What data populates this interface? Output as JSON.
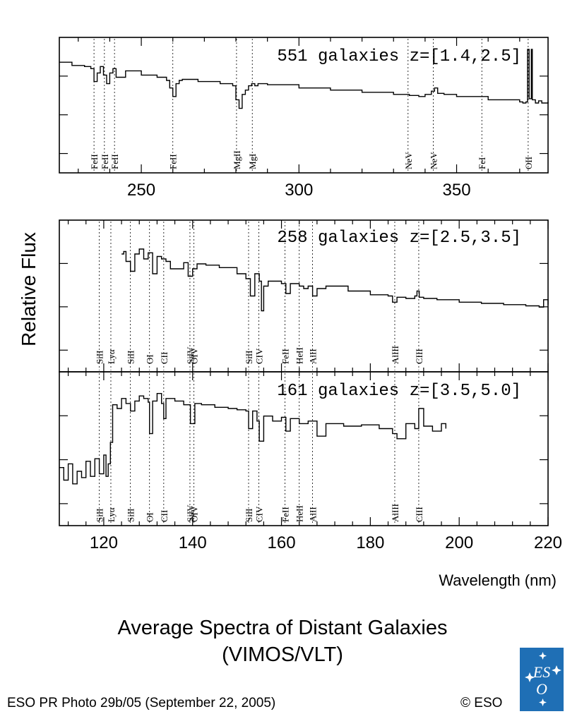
{
  "figure": {
    "ylabel": "Relative Flux",
    "xlabel": "Wavelength (nm)",
    "title_line1": "Average Spectra of Distant Galaxies",
    "title_line2": "(VIMOS/VLT)",
    "credit": "ESO PR Photo 29b/05 (September 22, 2005)",
    "copyright": "© ESO",
    "logo_text": "ESO",
    "colors": {
      "ink": "#000000",
      "logo_bg": "#1f6fb5",
      "logo_fg": "#ffffff"
    }
  },
  "chart_data": [
    {
      "type": "line",
      "panel": "top",
      "series_label": "551 galaxies z=[1.4,2.5]",
      "xlim": [
        224,
        379
      ],
      "xticks": [
        250,
        300,
        350
      ],
      "tick_labels_shown": true,
      "y_relative_range": [
        0,
        1
      ],
      "spectrum": {
        "x": [
          224,
          228,
          232,
          234,
          235,
          236,
          237,
          238,
          239,
          240,
          241,
          242,
          245,
          250,
          255,
          258,
          259,
          260,
          261,
          262,
          263,
          268,
          275,
          279,
          280,
          281,
          282,
          283,
          284,
          285,
          286,
          287,
          290,
          300,
          310,
          320,
          330,
          335,
          338,
          340,
          342,
          343,
          344,
          346,
          350,
          360,
          365,
          370,
          371,
          372,
          372.5,
          373,
          373.7,
          374,
          375,
          376,
          377,
          379
        ],
        "y": [
          0.9,
          0.87,
          0.86,
          0.84,
          0.72,
          0.8,
          0.86,
          0.78,
          0.7,
          0.8,
          0.84,
          0.76,
          0.82,
          0.78,
          0.76,
          0.73,
          0.66,
          0.58,
          0.7,
          0.73,
          0.74,
          0.72,
          0.7,
          0.68,
          0.55,
          0.47,
          0.6,
          0.64,
          0.68,
          0.7,
          0.68,
          0.7,
          0.69,
          0.66,
          0.64,
          0.62,
          0.6,
          0.59,
          0.58,
          0.6,
          0.63,
          0.66,
          0.61,
          0.6,
          0.58,
          0.55,
          0.55,
          0.53,
          0.52,
          0.53,
          1.02,
          0.56,
          1.02,
          0.55,
          0.52,
          0.54,
          0.52,
          0.53
        ]
      },
      "line_markers": [
        {
          "x": 235.0,
          "label": "FeII"
        },
        {
          "x": 238.3,
          "label": "FeII"
        },
        {
          "x": 241.5,
          "label": "FeII"
        },
        {
          "x": 260.0,
          "label": "FeII"
        },
        {
          "x": 280.2,
          "label": "MgII"
        },
        {
          "x": 285.2,
          "label": "MgI"
        },
        {
          "x": 334.6,
          "label": "NeV"
        },
        {
          "x": 342.6,
          "label": "NeV"
        },
        {
          "x": 358.0,
          "label": "FeI"
        },
        {
          "x": 372.7,
          "label": "OII"
        }
      ]
    },
    {
      "type": "line",
      "panel": "middle",
      "series_label": "258 galaxies z=[2.5,3.5]",
      "xlim": [
        110,
        220
      ],
      "xticks": [
        120,
        140,
        160,
        180,
        200,
        220
      ],
      "tick_labels_shown": false,
      "y_relative_range": [
        0,
        1
      ],
      "spectrum": {
        "x": [
          124,
          124.5,
          125,
          126,
          127,
          128,
          129,
          130,
          131,
          132,
          133,
          134,
          135,
          138,
          139,
          140,
          141,
          143,
          146,
          150,
          152,
          153,
          154,
          155,
          155.5,
          156,
          157,
          158,
          160,
          161,
          162,
          163,
          164,
          165,
          166,
          167,
          168,
          170,
          175,
          180,
          184,
          185,
          186,
          188,
          190,
          190.5,
          191,
          192,
          195,
          200,
          205,
          210,
          215,
          218,
          219,
          220
        ],
        "y": [
          0.84,
          0.86,
          0.78,
          0.7,
          0.84,
          0.88,
          0.8,
          0.85,
          0.68,
          0.82,
          0.8,
          0.78,
          0.72,
          0.77,
          0.66,
          0.72,
          0.76,
          0.75,
          0.73,
          0.68,
          0.64,
          0.5,
          0.68,
          0.62,
          0.38,
          0.58,
          0.62,
          0.62,
          0.6,
          0.52,
          0.6,
          0.6,
          0.58,
          0.56,
          0.58,
          0.5,
          0.56,
          0.58,
          0.54,
          0.51,
          0.5,
          0.45,
          0.49,
          0.48,
          0.5,
          0.54,
          0.49,
          0.48,
          0.47,
          0.45,
          0.44,
          0.43,
          0.42,
          0.41,
          0.47,
          0.43
        ]
      },
      "line_markers": [
        {
          "x": 119.0,
          "label": "SiII"
        },
        {
          "x": 121.6,
          "label": "Lyα"
        },
        {
          "x": 126.0,
          "label": "SiII"
        },
        {
          "x": 130.3,
          "label": "OI"
        },
        {
          "x": 133.5,
          "label": "CII"
        },
        {
          "x": 139.4,
          "label": "SiIV"
        },
        {
          "x": 140.3,
          "label": "OIV"
        },
        {
          "x": 152.6,
          "label": "SiII"
        },
        {
          "x": 154.9,
          "label": "CIV"
        },
        {
          "x": 160.8,
          "label": "FeII"
        },
        {
          "x": 164.0,
          "label": "HeII"
        },
        {
          "x": 167.0,
          "label": "AlII"
        },
        {
          "x": 185.5,
          "label": "AlIII"
        },
        {
          "x": 190.9,
          "label": "CIII"
        }
      ]
    },
    {
      "type": "line",
      "panel": "bottom",
      "series_label": "161 galaxies z=[3.5,5.0]",
      "xlim": [
        110,
        220
      ],
      "xticks": [
        120,
        140,
        160,
        180,
        200,
        220
      ],
      "tick_labels_shown": true,
      "y_relative_range": [
        0,
        1
      ],
      "spectrum": {
        "x": [
          110,
          111,
          112,
          113,
          114,
          115,
          116,
          117,
          118,
          119,
          120,
          120.5,
          121,
          121.5,
          122,
          123,
          124,
          125,
          126,
          127,
          128,
          129,
          130,
          130.3,
          131,
          132,
          133,
          133.5,
          134,
          136,
          138,
          139.5,
          140.5,
          142,
          145,
          148,
          150,
          152,
          152.6,
          153.5,
          154.5,
          155,
          156,
          158,
          160,
          161,
          162,
          164,
          166,
          168,
          170,
          174,
          178,
          182,
          185,
          186,
          188,
          190,
          190.9,
          192,
          194,
          196,
          197
        ],
        "y": [
          0.35,
          0.25,
          0.38,
          0.22,
          0.32,
          0.27,
          0.4,
          0.28,
          0.42,
          0.3,
          0.45,
          0.28,
          0.38,
          0.55,
          0.85,
          0.82,
          0.9,
          0.86,
          0.8,
          0.88,
          0.92,
          0.9,
          0.87,
          0.62,
          0.88,
          0.94,
          0.86,
          0.74,
          0.9,
          0.88,
          0.85,
          0.7,
          0.86,
          0.85,
          0.83,
          0.82,
          0.81,
          0.8,
          0.66,
          0.8,
          0.72,
          0.56,
          0.76,
          0.72,
          0.75,
          0.64,
          0.74,
          0.7,
          0.72,
          0.6,
          0.7,
          0.68,
          0.69,
          0.66,
          0.62,
          0.58,
          0.7,
          0.66,
          0.82,
          0.68,
          0.64,
          0.7,
          0.66
        ]
      },
      "line_markers": [
        {
          "x": 119.0,
          "label": "SiII"
        },
        {
          "x": 121.6,
          "label": "Lyα"
        },
        {
          "x": 126.0,
          "label": "SiII"
        },
        {
          "x": 130.3,
          "label": "OI"
        },
        {
          "x": 133.5,
          "label": "CII"
        },
        {
          "x": 139.4,
          "label": "SiIV"
        },
        {
          "x": 140.3,
          "label": "OIV"
        },
        {
          "x": 152.6,
          "label": "SiII"
        },
        {
          "x": 154.9,
          "label": "CIV"
        },
        {
          "x": 160.8,
          "label": "FeII"
        },
        {
          "x": 164.0,
          "label": "HeII"
        },
        {
          "x": 167.0,
          "label": "AlII"
        },
        {
          "x": 185.5,
          "label": "AlIII"
        },
        {
          "x": 190.9,
          "label": "CIII"
        }
      ]
    }
  ]
}
